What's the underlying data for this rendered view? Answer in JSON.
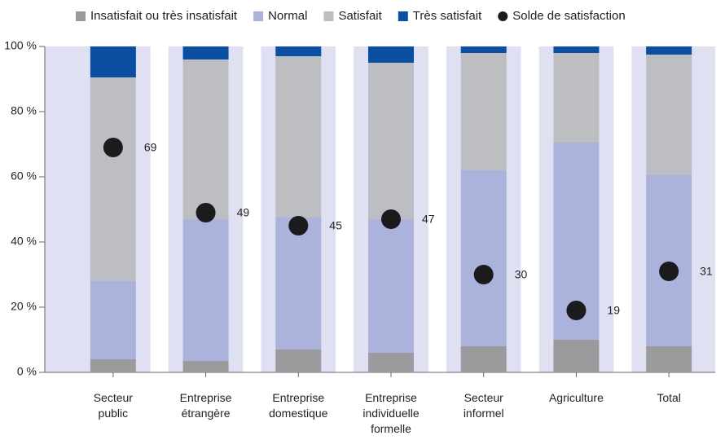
{
  "chart_data": {
    "type": "bar",
    "stacked": true,
    "categories": [
      [
        "Secteur",
        "public"
      ],
      [
        "Entreprise",
        "étrangère"
      ],
      [
        "Entreprise",
        "domestique"
      ],
      [
        "Entreprise",
        "individuelle",
        "formelle"
      ],
      [
        "Secteur",
        "informel"
      ],
      [
        "Agriculture"
      ],
      [
        "Total"
      ]
    ],
    "series": [
      {
        "name": "Insatisfait ou très insatisfait",
        "color": "#9b9b9d",
        "values": [
          4,
          3.5,
          7,
          6,
          8,
          10,
          8
        ]
      },
      {
        "name": "Normal",
        "color": "#abb3dc",
        "values": [
          24,
          43.5,
          40.5,
          41,
          54,
          60.5,
          52.5
        ]
      },
      {
        "name": "Satisfait",
        "color": "#bdbec1",
        "values": [
          62.5,
          49,
          49.5,
          48,
          36,
          27.5,
          37
        ]
      },
      {
        "name": "Très satisfait",
        "color": "#0b4ea2",
        "values": [
          9.5,
          4,
          3,
          5,
          2,
          2,
          2.5
        ]
      }
    ],
    "points": {
      "type": "scatter",
      "name": "Solde de satisfaction",
      "color": "#1b1b1d",
      "values": [
        69,
        49,
        45,
        47,
        30,
        19,
        31
      ]
    },
    "ylim": [
      0,
      100
    ],
    "yticks": [
      {
        "value": 0,
        "label": "0 %"
      },
      {
        "value": 20,
        "label": "20 %"
      },
      {
        "value": 40,
        "label": "40 %"
      },
      {
        "value": 60,
        "label": "60 %"
      },
      {
        "value": 80,
        "label": "80 %"
      },
      {
        "value": 100,
        "label": "100 %"
      }
    ],
    "legend": "top"
  }
}
